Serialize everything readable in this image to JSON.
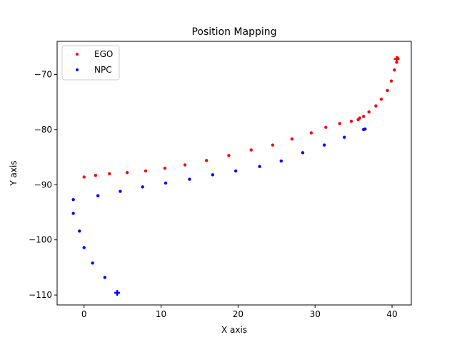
{
  "chart_data": {
    "type": "scatter",
    "title": "Position Mapping",
    "xlabel": "X axis",
    "ylabel": "Y axis",
    "xlim": [
      -3.5,
      42.5
    ],
    "ylim": [
      -111.8,
      -64.0
    ],
    "xticks": [
      0,
      10,
      20,
      30,
      40
    ],
    "yticks": [
      -110,
      -100,
      -90,
      -80,
      -70
    ],
    "legend_position": "upper-left",
    "series": [
      {
        "name": "EGO",
        "color": "#ff0000",
        "x": [
          0.0,
          1.5,
          3.3,
          5.6,
          8.0,
          10.5,
          13.1,
          15.9,
          18.8,
          21.7,
          24.5,
          27.0,
          29.5,
          31.4,
          33.2,
          34.7,
          35.6,
          35.8,
          36.3,
          37.0,
          37.9,
          38.6,
          39.4,
          39.9,
          40.3,
          40.6,
          40.7
        ],
        "y": [
          -88.6,
          -88.3,
          -88.0,
          -87.8,
          -87.5,
          -87.0,
          -86.4,
          -85.6,
          -84.7,
          -83.7,
          -82.8,
          -81.7,
          -80.6,
          -79.6,
          -78.9,
          -78.5,
          -78.2,
          -77.9,
          -77.6,
          -76.8,
          -75.7,
          -74.5,
          -72.9,
          -71.2,
          -69.2,
          -67.8,
          -67.0
        ]
      },
      {
        "name": "NPC",
        "color": "#0000ff",
        "x": [
          -1.4,
          -1.4,
          -0.6,
          0.0,
          1.1,
          2.7,
          1.8,
          4.7,
          7.6,
          10.6,
          13.7,
          16.7,
          19.7,
          22.8,
          25.6,
          28.4,
          31.2,
          33.8,
          36.3,
          36.5
        ],
        "y": [
          -92.7,
          -95.2,
          -98.4,
          -101.4,
          -104.2,
          -106.8,
          -92.0,
          -91.2,
          -90.4,
          -89.7,
          -89.0,
          -88.2,
          -87.5,
          -86.7,
          -85.7,
          -84.2,
          -82.8,
          -81.4,
          -80.0,
          -79.9
        ]
      }
    ],
    "markers": [
      {
        "series": "EGO",
        "symbol": "+",
        "x": 40.6,
        "y": -67.2
      },
      {
        "series": "NPC",
        "symbol": "+",
        "x": 4.3,
        "y": -109.6
      }
    ]
  }
}
